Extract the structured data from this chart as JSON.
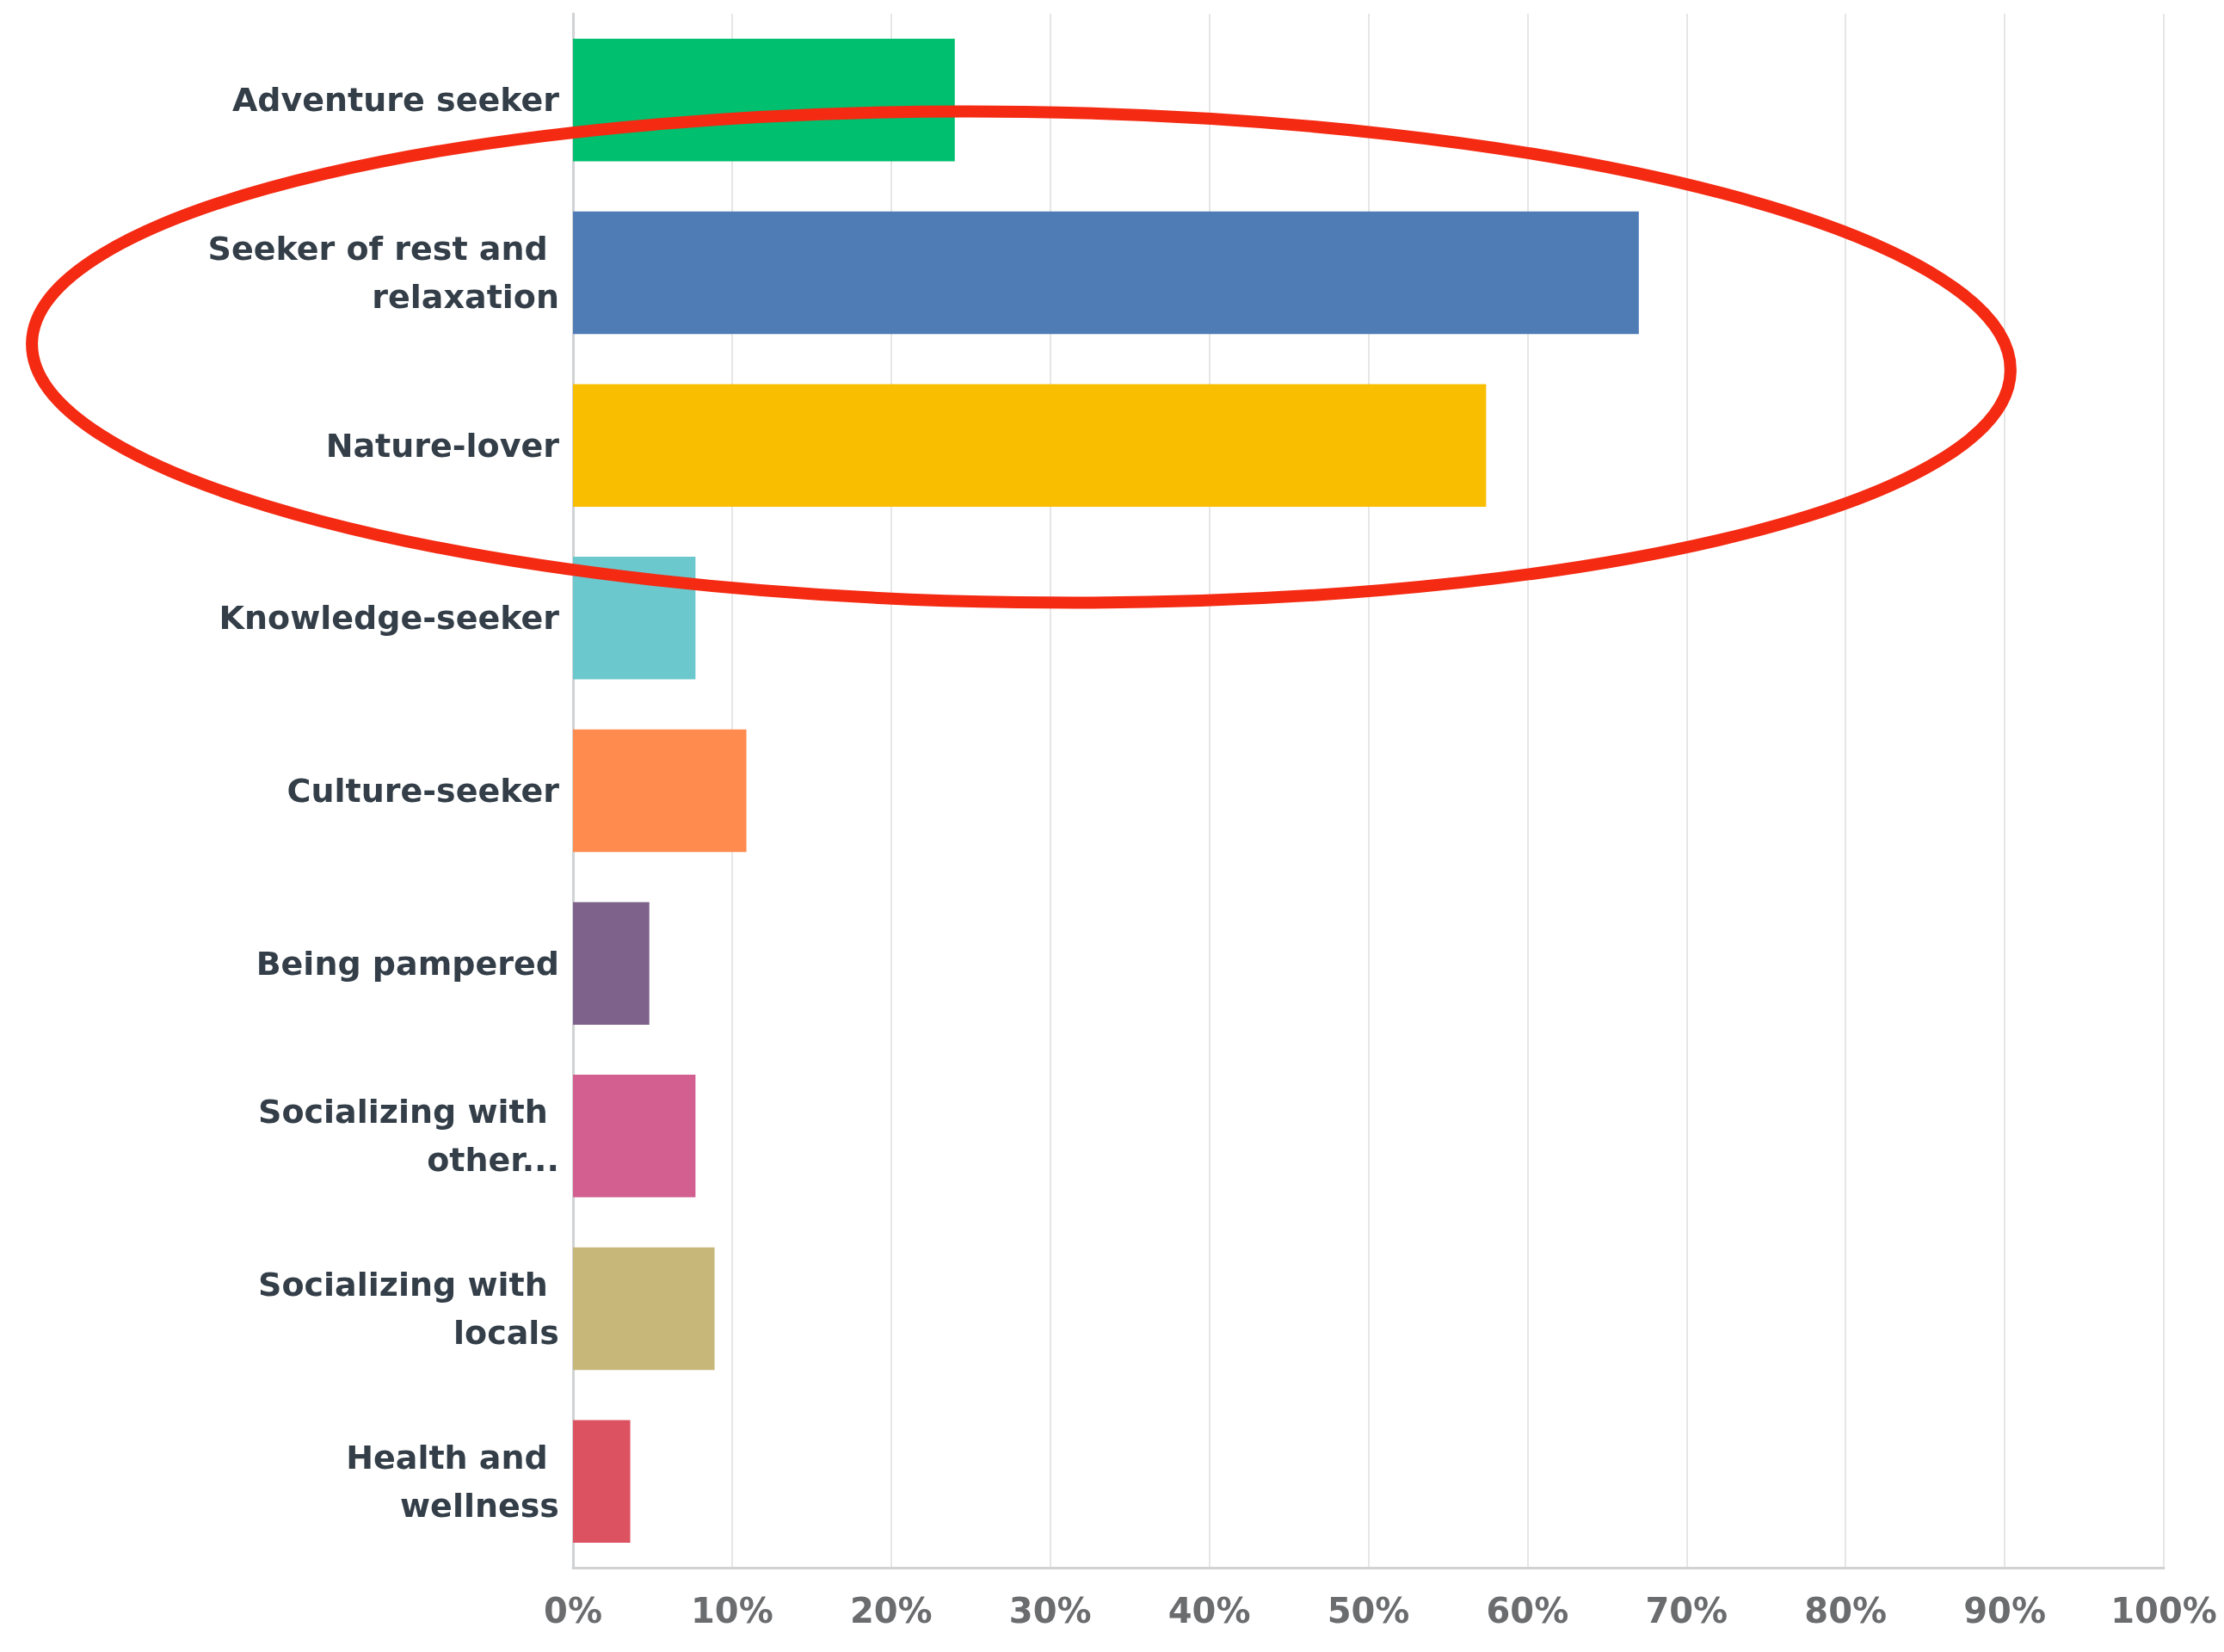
{
  "chart_data": {
    "type": "bar",
    "orientation": "horizontal",
    "categories": [
      "Adventure seeker",
      "Seeker of rest and relaxation",
      "Nature-lover",
      "Knowledge-seeker",
      "Culture-seeker",
      "Being pampered",
      "Socializing with other...",
      "Socializing with locals",
      "Health and wellness"
    ],
    "values": [
      24,
      67,
      57.4,
      7.7,
      10.9,
      4.8,
      7.7,
      8.9,
      3.6
    ],
    "colors": [
      "#00bf6f",
      "#507cb6",
      "#f9be00",
      "#6bc8cd",
      "#ff8b4f",
      "#7f628b",
      "#d25f90",
      "#c7b879",
      "#dc5260"
    ],
    "xlim": [
      0,
      100
    ],
    "xticks": [
      {
        "value": 0,
        "label": "0%"
      },
      {
        "value": 10,
        "label": "10%"
      },
      {
        "value": 20,
        "label": "20%"
      },
      {
        "value": 30,
        "label": "30%"
      },
      {
        "value": 40,
        "label": "40%"
      },
      {
        "value": 50,
        "label": "50%"
      },
      {
        "value": 60,
        "label": "60%"
      },
      {
        "value": 70,
        "label": "70%"
      },
      {
        "value": 80,
        "label": "80%"
      },
      {
        "value": 90,
        "label": "90%"
      },
      {
        "value": 100,
        "label": "100%"
      }
    ],
    "grid": "x"
  }
}
